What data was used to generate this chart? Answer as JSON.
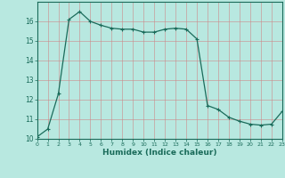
{
  "x": [
    0,
    1,
    2,
    3,
    4,
    5,
    6,
    7,
    8,
    9,
    10,
    11,
    12,
    13,
    14,
    15,
    16,
    17,
    18,
    19,
    20,
    21,
    22,
    23
  ],
  "y": [
    10.1,
    10.5,
    12.3,
    16.1,
    16.5,
    16.0,
    15.8,
    15.65,
    15.6,
    15.6,
    15.45,
    15.45,
    15.6,
    15.65,
    15.6,
    15.1,
    11.7,
    11.5,
    11.1,
    10.9,
    10.75,
    10.7,
    10.75,
    11.4
  ],
  "xlim": [
    0,
    23
  ],
  "ylim": [
    10,
    17
  ],
  "yticks": [
    10,
    11,
    12,
    13,
    14,
    15,
    16
  ],
  "xticks": [
    0,
    1,
    2,
    3,
    4,
    5,
    6,
    7,
    8,
    9,
    10,
    11,
    12,
    13,
    14,
    15,
    16,
    17,
    18,
    19,
    20,
    21,
    22,
    23
  ],
  "xlabel": "Humidex (Indice chaleur)",
  "line_color": "#1a6b5a",
  "marker": "+",
  "bg_color": "#b8e8e0",
  "grid_color_v": "#cc8888",
  "grid_color_h": "#cc8888",
  "axis_color": "#1a6b5a",
  "tick_color": "#1a6b5a"
}
